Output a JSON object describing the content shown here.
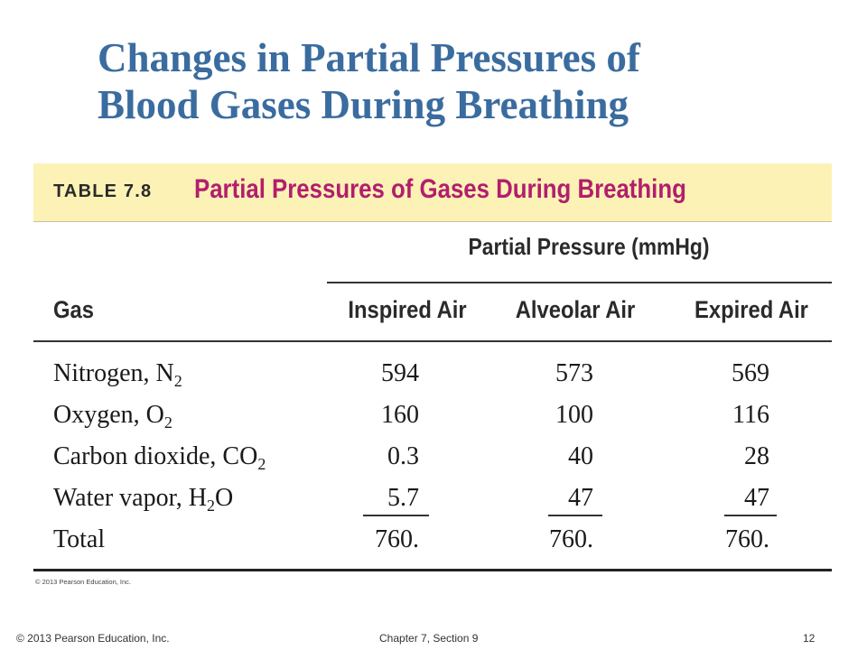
{
  "slide": {
    "title_lines": [
      "Changes in Partial Pressures of",
      "Blood Gases During Breathing"
    ]
  },
  "table": {
    "number": "TABLE 7.8",
    "caption": "Partial Pressures of Gases During Breathing",
    "group_header": "Partial Pressure (mmHg)",
    "columns": [
      "Gas",
      "Inspired Air",
      "Alveolar Air",
      "Expired Air"
    ],
    "rows": [
      {
        "gas": "Nitrogen, N",
        "sub": "2",
        "suffix": "",
        "values": [
          "594",
          "573",
          "569"
        ]
      },
      {
        "gas": "Oxygen, O",
        "sub": "2",
        "suffix": "",
        "values": [
          "160",
          "100",
          "116"
        ]
      },
      {
        "gas": "Carbon dioxide, CO",
        "sub": "2",
        "suffix": "",
        "values": [
          "0.3",
          "40",
          "28"
        ]
      },
      {
        "gas": "Water vapor, H",
        "sub": "2",
        "suffix": "O",
        "values": [
          "5.7",
          "47",
          "47"
        ]
      },
      {
        "gas": "Total",
        "sub": "",
        "suffix": "",
        "values": [
          "760.",
          "760.",
          "760."
        ]
      }
    ],
    "copyright": "© 2013 Pearson Education, Inc.",
    "colors": {
      "header_bg": "#fdf2b5",
      "caption": "#b21e6e"
    }
  },
  "footer": {
    "left": "© 2013 Pearson Education, Inc.",
    "center": "Chapter 7, Section 9",
    "page": "12"
  },
  "colors": {
    "title": "#3a6c9f"
  }
}
